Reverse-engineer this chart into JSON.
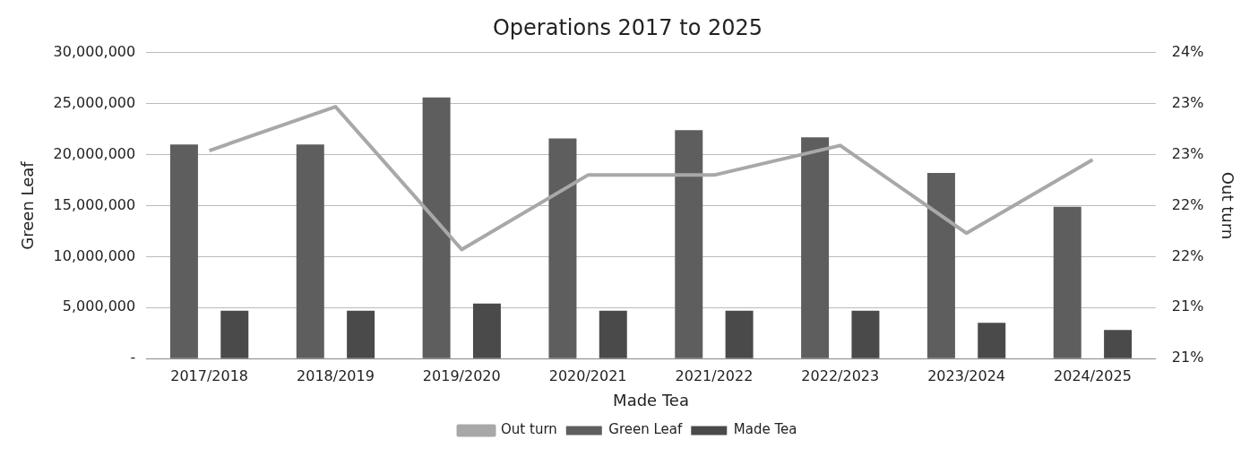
{
  "chart_data": {
    "type": "bar",
    "title": "Operations 2017 to 2025",
    "xlabel": "Made Tea",
    "ylabel": "Green Leaf",
    "y2label": "Out turn",
    "categories": [
      "2017/2018",
      "2018/2019",
      "2019/2020",
      "2020/2021",
      "2021/2022",
      "2022/2023",
      "2023/2024",
      "2024/2025"
    ],
    "series": [
      {
        "name": "Green Leaf",
        "color": "#5e5e5e",
        "values": [
          21000000,
          21000000,
          25600000,
          21600000,
          22400000,
          21700000,
          18200000,
          14900000
        ]
      },
      {
        "name": "Made Tea",
        "color": "#4a4a4a",
        "values": [
          4700000,
          4700000,
          5400000,
          4700000,
          4700000,
          4700000,
          3500000,
          2800000
        ]
      },
      {
        "name": "Out turn",
        "type": "line",
        "axis": "y2",
        "color": "#a8a8a8",
        "marker": "none",
        "values": [
          23.04,
          23.47,
          22.07,
          22.8,
          22.8,
          23.09,
          22.23,
          22.95
        ]
      }
    ],
    "ylim": [
      0,
      30000000
    ],
    "yticks": [
      {
        "value": 0,
        "label": "-"
      },
      {
        "value": 5000000,
        "label": "5,000,000"
      },
      {
        "value": 10000000,
        "label": "10,000,000"
      },
      {
        "value": 15000000,
        "label": "15,000,000"
      },
      {
        "value": 20000000,
        "label": "20,000,000"
      },
      {
        "value": 25000000,
        "label": "25,000,000"
      },
      {
        "value": 30000000,
        "label": "30,000,000"
      }
    ],
    "y2lim": [
      21,
      24
    ],
    "y2ticks": [
      {
        "value": 21,
        "label": "21%"
      },
      {
        "value": 21.5,
        "label": "21%"
      },
      {
        "value": 22,
        "label": "22%"
      },
      {
        "value": 22.5,
        "label": "22%"
      },
      {
        "value": 23,
        "label": "23%"
      },
      {
        "value": 23.5,
        "label": "23%"
      },
      {
        "value": 24,
        "label": "24%"
      }
    ],
    "grid": "y",
    "legend": "bottom"
  }
}
